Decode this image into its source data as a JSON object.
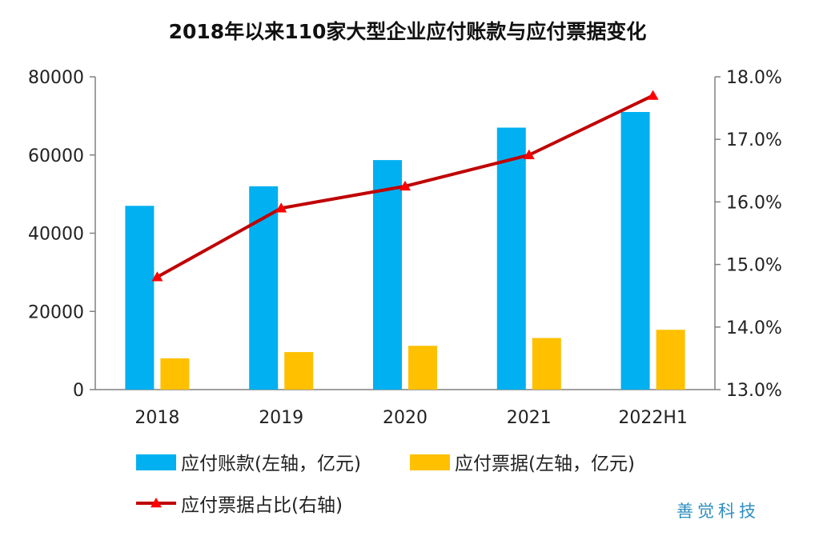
{
  "chart_data": {
    "type": "bar",
    "title": "2018年以来110家大型企业应付账款与应付票据变化",
    "categories": [
      "2018",
      "2019",
      "2020",
      "2021",
      "2022H1"
    ],
    "series": [
      {
        "name": "应付账款(左轴，亿元)",
        "type": "bar",
        "axis": "left",
        "color": "#00b0f0",
        "values": [
          47000,
          52000,
          58700,
          67000,
          71000
        ]
      },
      {
        "name": "应付票据(左轴，亿元)",
        "type": "bar",
        "axis": "left",
        "color": "#ffc000",
        "values": [
          8000,
          9600,
          11200,
          13200,
          15300
        ]
      },
      {
        "name": "应付票据占比(右轴)",
        "type": "line",
        "axis": "right",
        "color": "#c00000",
        "marker": "triangle",
        "marker_color": "#ff0000",
        "values": [
          14.8,
          15.9,
          16.25,
          16.75,
          17.7
        ]
      }
    ],
    "y_left": {
      "min": 0,
      "max": 80000,
      "ticks": [
        "0",
        "20000",
        "40000",
        "60000",
        "80000"
      ]
    },
    "y_right": {
      "min": 13.0,
      "max": 18.0,
      "ticks": [
        "13.0%",
        "14.0%",
        "15.0%",
        "16.0%",
        "17.0%",
        "18.0%"
      ]
    },
    "grid": false,
    "legend_position": "bottom"
  },
  "watermark": "善觉科技"
}
